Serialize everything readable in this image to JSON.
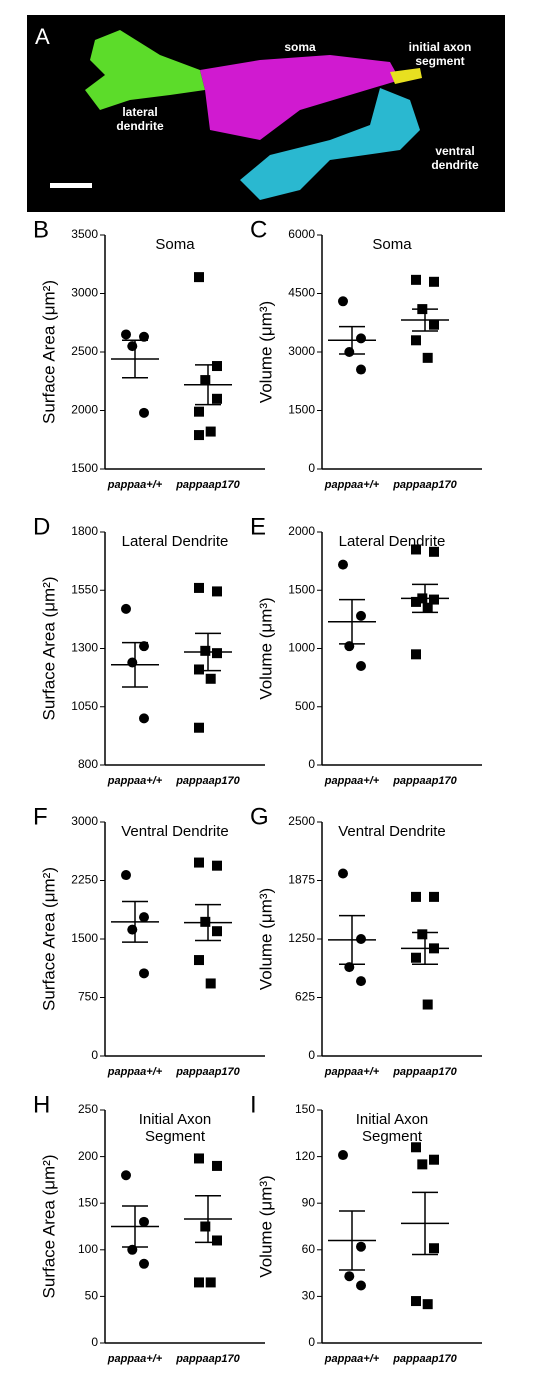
{
  "panel_a": {
    "letter": "A",
    "labels": {
      "soma": [
        "soma"
      ],
      "axon": [
        "initial axon",
        "segment"
      ],
      "lateral": [
        "lateral",
        "dendrite"
      ],
      "ventral": [
        "ventral",
        "dendrite"
      ]
    }
  },
  "chart_data": [
    {
      "type": "dot",
      "panel": "B",
      "title": [
        "Soma"
      ],
      "ylabel": "Surface Area (μm²)",
      "categories": [
        "pappaa+/+",
        "pappaap170"
      ],
      "markers": [
        "circle",
        "square"
      ],
      "ylim": [
        1500,
        3500
      ],
      "yticks": [
        1500,
        2000,
        2500,
        3000,
        3500
      ],
      "points": [
        [
          2650,
          2630,
          2550,
          1980
        ],
        [
          3140,
          2380,
          2260,
          2100,
          1990,
          1820,
          1790
        ]
      ],
      "mean": [
        2440,
        2220
      ],
      "sem": [
        160,
        170
      ]
    },
    {
      "type": "dot",
      "panel": "C",
      "title": [
        "Soma"
      ],
      "ylabel": "Volume (μm³)",
      "categories": [
        "pappaa+/+",
        "pappaap170"
      ],
      "markers": [
        "circle",
        "square"
      ],
      "ylim": [
        0,
        6000
      ],
      "yticks": [
        0,
        1500,
        3000,
        4500,
        6000
      ],
      "points": [
        [
          4300,
          3350,
          3000,
          2550
        ],
        [
          4850,
          4800,
          4100,
          3700,
          3300,
          2850
        ]
      ],
      "mean": [
        3300,
        3820
      ],
      "sem": [
        350,
        280
      ]
    },
    {
      "type": "dot",
      "panel": "D",
      "title": [
        "Lateral Dendrite"
      ],
      "ylabel": "Surface Area (μm²)",
      "categories": [
        "pappaa+/+",
        "pappaap170"
      ],
      "markers": [
        "circle",
        "square"
      ],
      "ylim": [
        800,
        1800
      ],
      "yticks": [
        800,
        1050,
        1300,
        1550,
        1800
      ],
      "points": [
        [
          1470,
          1310,
          1240,
          1000
        ],
        [
          1560,
          1545,
          1290,
          1280,
          1210,
          1170,
          960
        ]
      ],
      "mean": [
        1230,
        1285
      ],
      "sem": [
        95,
        80
      ]
    },
    {
      "type": "dot",
      "panel": "E",
      "title": [
        "Lateral Dendrite"
      ],
      "ylabel": "Volume (μm³)",
      "categories": [
        "pappaa+/+",
        "pappaap170"
      ],
      "markers": [
        "circle",
        "square"
      ],
      "ylim": [
        0,
        2000
      ],
      "yticks": [
        0,
        500,
        1000,
        1500,
        2000
      ],
      "points": [
        [
          1720,
          1280,
          1020,
          850
        ],
        [
          1850,
          1830,
          1430,
          1420,
          1400,
          1350,
          950
        ]
      ],
      "mean": [
        1230,
        1430
      ],
      "sem": [
        190,
        120
      ]
    },
    {
      "type": "dot",
      "panel": "F",
      "title": [
        "Ventral Dendrite"
      ],
      "ylabel": "Surface Area (μm²)",
      "categories": [
        "pappaa+/+",
        "pappaap170"
      ],
      "markers": [
        "circle",
        "square"
      ],
      "ylim": [
        0,
        3000
      ],
      "yticks": [
        0,
        750,
        1500,
        2250,
        3000
      ],
      "points": [
        [
          2320,
          1780,
          1620,
          1060
        ],
        [
          2480,
          2440,
          1720,
          1600,
          1230,
          930
        ]
      ],
      "mean": [
        1720,
        1710
      ],
      "sem": [
        260,
        230
      ]
    },
    {
      "type": "dot",
      "panel": "G",
      "title": [
        "Ventral Dendrite"
      ],
      "ylabel": "Volume (μm³)",
      "categories": [
        "pappaa+/+",
        "pappaap170"
      ],
      "markers": [
        "circle",
        "square"
      ],
      "ylim": [
        0,
        2500
      ],
      "yticks": [
        0,
        625,
        1250,
        1875,
        2500
      ],
      "points": [
        [
          1950,
          1250,
          950,
          800
        ],
        [
          1700,
          1700,
          1300,
          1150,
          1050,
          550
        ]
      ],
      "mean": [
        1240,
        1150
      ],
      "sem": [
        260,
        170
      ]
    },
    {
      "type": "dot",
      "panel": "H",
      "title": [
        "Initial Axon",
        "Segment"
      ],
      "ylabel": "Surface Area (μm²)",
      "categories": [
        "pappaa+/+",
        "pappaap170"
      ],
      "markers": [
        "circle",
        "square"
      ],
      "ylim": [
        0,
        250
      ],
      "yticks": [
        0,
        50,
        100,
        150,
        200,
        250
      ],
      "points": [
        [
          180,
          130,
          100,
          85
        ],
        [
          198,
          190,
          125,
          110,
          65,
          65
        ]
      ],
      "mean": [
        125,
        133
      ],
      "sem": [
        22,
        25
      ]
    },
    {
      "type": "dot",
      "panel": "I",
      "title": [
        "Initial Axon",
        "Segment"
      ],
      "ylabel": "Volume (μm³)",
      "categories": [
        "pappaa+/+",
        "pappaap170"
      ],
      "markers": [
        "circle",
        "square"
      ],
      "ylim": [
        0,
        150
      ],
      "yticks": [
        0,
        30,
        60,
        90,
        120,
        150
      ],
      "points": [
        [
          121,
          62,
          43,
          37
        ],
        [
          126,
          118,
          115,
          61,
          27,
          25
        ]
      ],
      "mean": [
        66,
        77
      ],
      "sem": [
        19,
        20
      ]
    }
  ]
}
